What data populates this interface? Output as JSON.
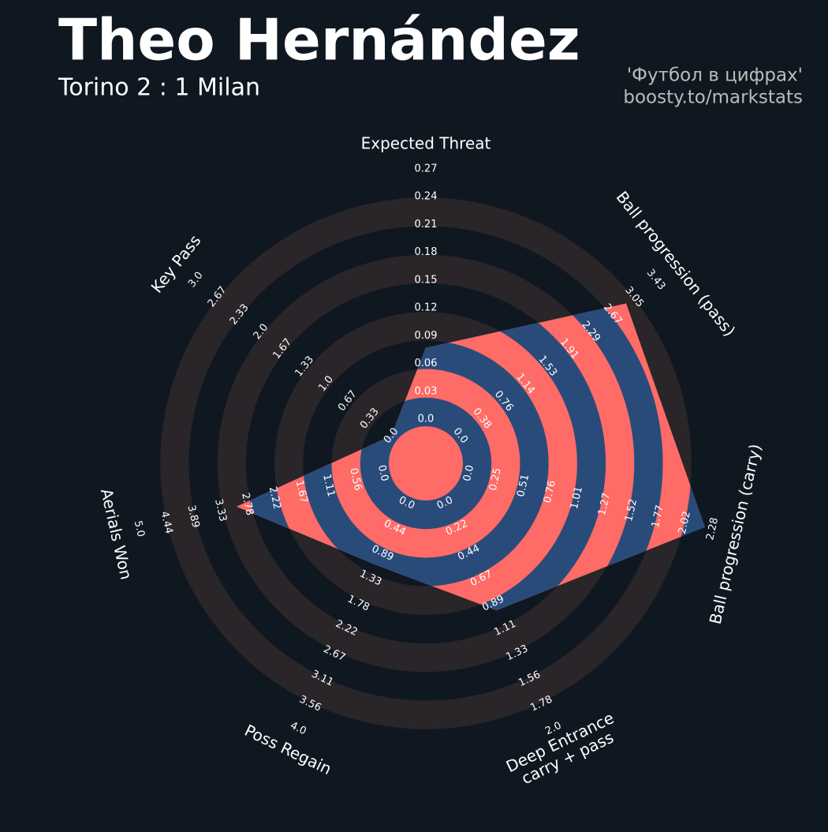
{
  "chart_data": {
    "type": "radar",
    "title": "Theo Hernández",
    "subtitle": "Torino 2 : 1 Milan",
    "annotations": [
      "'Футбол в цифрах'",
      "boosty.to/markstats"
    ],
    "categories": [
      "Expected Threat",
      "Ball progression (pass)",
      "Ball progression (carry)",
      "Deep Entrance\ncarry + pass",
      "Poss Regain",
      "Aerials Won",
      "Key Pass"
    ],
    "values": [
      0.077,
      2.91,
      2.21,
      0.95,
      1.1,
      3.0,
      0
    ],
    "color": "#294b7a",
    "ring_color": "#ff6b66",
    "axes": [
      {
        "lim": [
          0,
          0.27
        ],
        "ticks": [
          {
            "value": 0,
            "label": "0.0"
          },
          0.03,
          0.06,
          0.09,
          0.12,
          0.15,
          0.18,
          0.21,
          0.24,
          0.27
        ]
      },
      {
        "lim": [
          0,
          3.43
        ],
        "ticks": [
          {
            "value": 0,
            "label": "0.0"
          },
          0.38,
          0.76,
          1.14,
          1.53,
          1.91,
          2.29,
          2.67,
          3.05,
          3.43
        ]
      },
      {
        "lim": [
          0,
          2.28
        ],
        "ticks": [
          {
            "value": 0,
            "label": "0.0"
          },
          0.25,
          0.51,
          0.76,
          1.01,
          1.27,
          1.52,
          1.77,
          2.02,
          2.28
        ]
      },
      {
        "lim": [
          0,
          2
        ],
        "ticks": [
          {
            "value": 0,
            "label": "0.0"
          },
          0.22,
          0.44,
          0.67,
          0.89,
          1.11,
          1.33,
          1.56,
          1.78,
          {
            "value": 2,
            "label": "2.0"
          }
        ]
      },
      {
        "lim": [
          0,
          4
        ],
        "ticks": [
          {
            "value": 0,
            "label": "0.0"
          },
          0.44,
          0.89,
          1.33,
          1.78,
          2.22,
          2.67,
          3.11,
          3.56,
          {
            "value": 4,
            "label": "4.0"
          }
        ]
      },
      {
        "lim": [
          0,
          5
        ],
        "ticks": [
          {
            "value": 0,
            "label": "0.0"
          },
          0.56,
          1.11,
          1.67,
          2.22,
          2.78,
          3.33,
          3.89,
          4.44,
          {
            "value": 5,
            "label": "5.0"
          }
        ]
      },
      {
        "lim": [
          0,
          3
        ],
        "ticks": [
          {
            "value": 0,
            "label": "0.0"
          },
          0.33,
          0.67,
          {
            "value": 1,
            "label": "1.0"
          },
          1.33,
          1.67,
          {
            "value": 2,
            "label": "2.0"
          },
          2.33,
          2.67,
          {
            "value": 3,
            "label": "3.0"
          }
        ]
      }
    ]
  }
}
